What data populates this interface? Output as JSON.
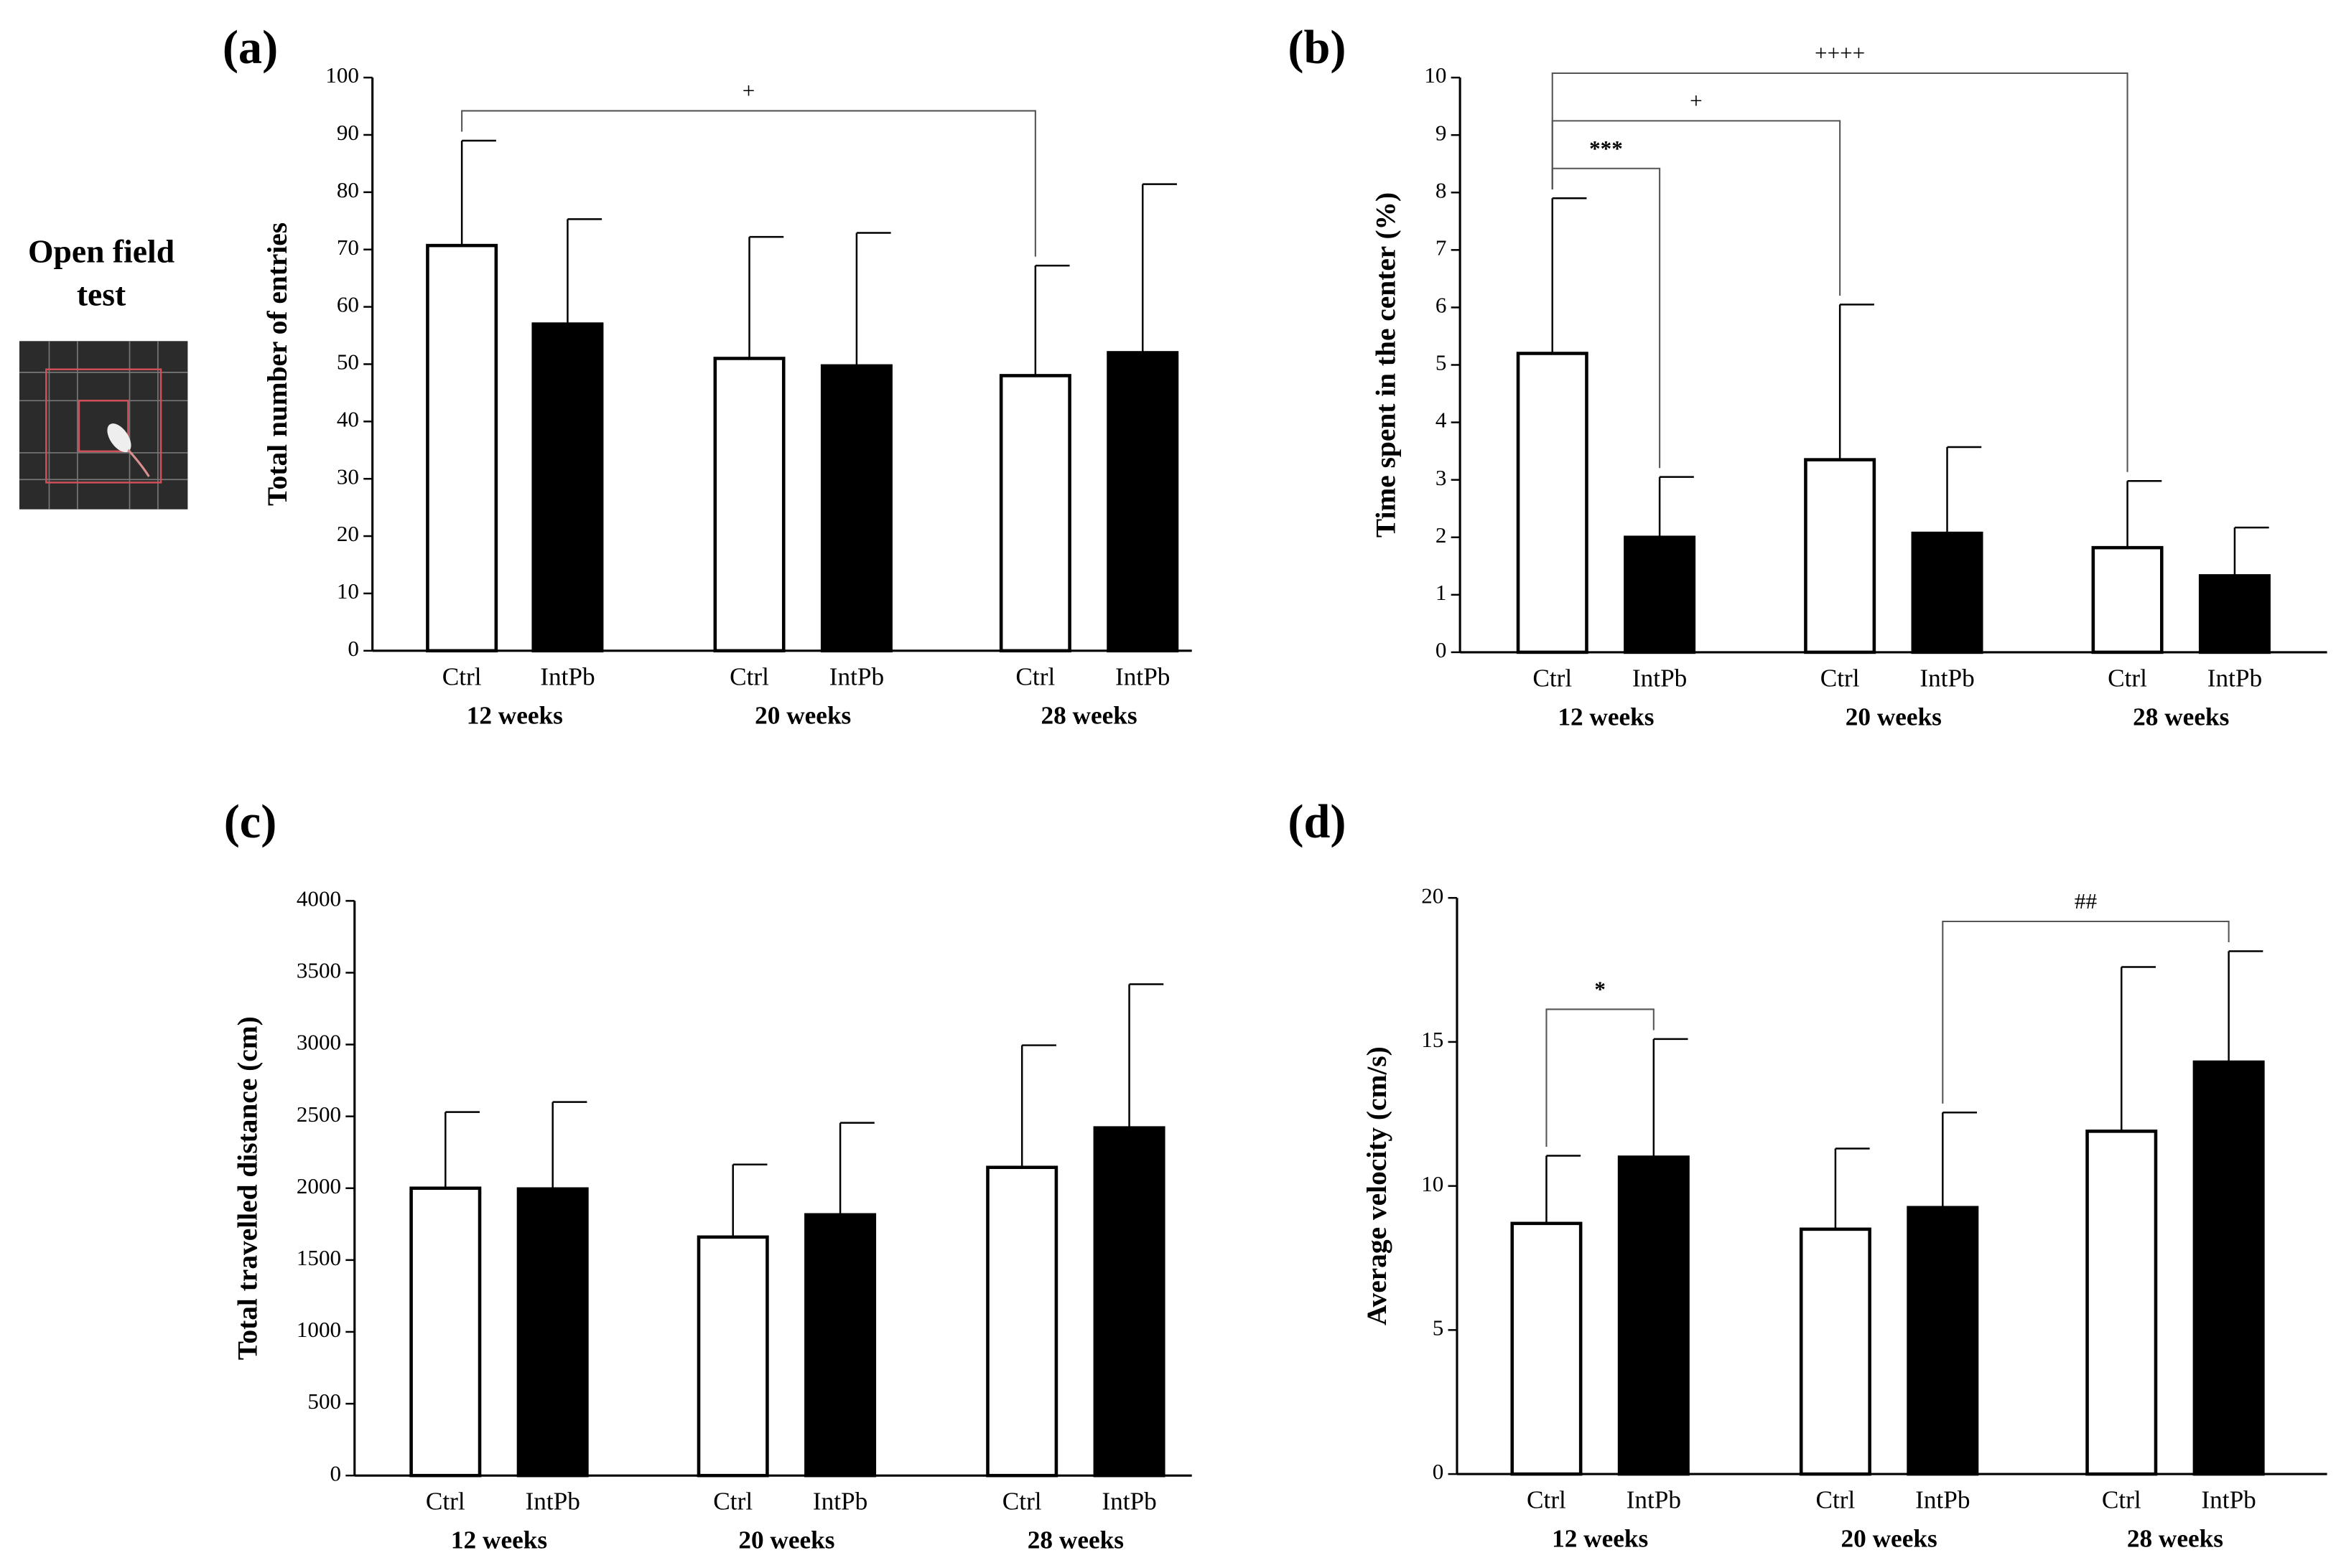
{
  "side_label": [
    "Open field",
    "test"
  ],
  "chart_data": [
    {
      "type": "bar",
      "panel": "(a)",
      "ylabel": "Total number of entries",
      "categories": [
        "Ctrl",
        "IntPb",
        "Ctrl",
        "IntPb",
        "Ctrl",
        "IntPb"
      ],
      "groups": [
        "12 weeks",
        "20 weeks",
        "28 weeks"
      ],
      "values": [
        70.7,
        57,
        51,
        49.7,
        48,
        52
      ],
      "errors": [
        18.3,
        18.3,
        21.2,
        23.2,
        19.2,
        29.4
      ],
      "colors": [
        "#ffffff",
        "#000000",
        "#ffffff",
        "#000000",
        "#ffffff",
        "#000000"
      ],
      "ylim": [
        0,
        100
      ],
      "yticks": [
        0,
        10,
        20,
        30,
        40,
        50,
        60,
        70,
        80,
        90,
        100
      ],
      "annotations": [
        {
          "from": 0,
          "to": 4,
          "text": "+"
        }
      ]
    },
    {
      "type": "bar",
      "panel": "(b)",
      "ylabel": "Time spent in the center (%)",
      "categories": [
        "Ctrl",
        "IntPb",
        "Ctrl",
        "IntPb",
        "Ctrl",
        "IntPb"
      ],
      "groups": [
        "12 weeks",
        "20 weeks",
        "28 weeks"
      ],
      "values": [
        5.2,
        2.0,
        3.35,
        2.07,
        1.82,
        1.33
      ],
      "errors": [
        2.7,
        1.05,
        2.7,
        1.5,
        1.16,
        0.84
      ],
      "colors": [
        "#ffffff",
        "#000000",
        "#ffffff",
        "#000000",
        "#ffffff",
        "#000000"
      ],
      "ylim": [
        0,
        10
      ],
      "yticks": [
        0,
        1,
        2,
        3,
        4,
        5,
        6,
        7,
        8,
        9,
        10
      ],
      "annotations": [
        {
          "from": 0,
          "to": 1,
          "text": "***"
        },
        {
          "from": 0,
          "to": 2,
          "text": "+"
        },
        {
          "from": 0,
          "to": 4,
          "text": "++++"
        }
      ]
    },
    {
      "type": "bar",
      "panel": "(c)",
      "ylabel": "Total travelled distance (cm)",
      "categories": [
        "Ctrl",
        "IntPb",
        "Ctrl",
        "IntPb",
        "Ctrl",
        "IntPb"
      ],
      "groups": [
        "12 weeks",
        "20 weeks",
        "28 weeks"
      ],
      "values": [
        2000,
        1995,
        1660,
        1815,
        2145,
        2420
      ],
      "errors": [
        530,
        605,
        505,
        640,
        850,
        1000
      ],
      "colors": [
        "#ffffff",
        "#000000",
        "#ffffff",
        "#000000",
        "#ffffff",
        "#000000"
      ],
      "ylim": [
        0,
        4000
      ],
      "yticks": [
        0,
        500,
        1000,
        1500,
        2000,
        2500,
        3000,
        3500,
        4000
      ],
      "annotations": []
    },
    {
      "type": "bar",
      "panel": "(d)",
      "ylabel": "Average velocity (cm/s)",
      "categories": [
        "Ctrl",
        "IntPb",
        "Ctrl",
        "IntPb",
        "Ctrl",
        "IntPb"
      ],
      "groups": [
        "12 weeks",
        "20 weeks",
        "28 weeks"
      ],
      "values": [
        8.7,
        11.0,
        8.5,
        9.25,
        11.9,
        14.3
      ],
      "errors": [
        2.35,
        4.1,
        2.8,
        3.3,
        5.7,
        3.85
      ],
      "colors": [
        "#ffffff",
        "#000000",
        "#ffffff",
        "#000000",
        "#ffffff",
        "#000000"
      ],
      "ylim": [
        0,
        20
      ],
      "yticks": [
        0,
        5,
        10,
        15,
        20
      ],
      "annotations": [
        {
          "from": 0,
          "to": 1,
          "text": "*"
        },
        {
          "from": 3,
          "to": 5,
          "text": "##"
        }
      ]
    }
  ]
}
